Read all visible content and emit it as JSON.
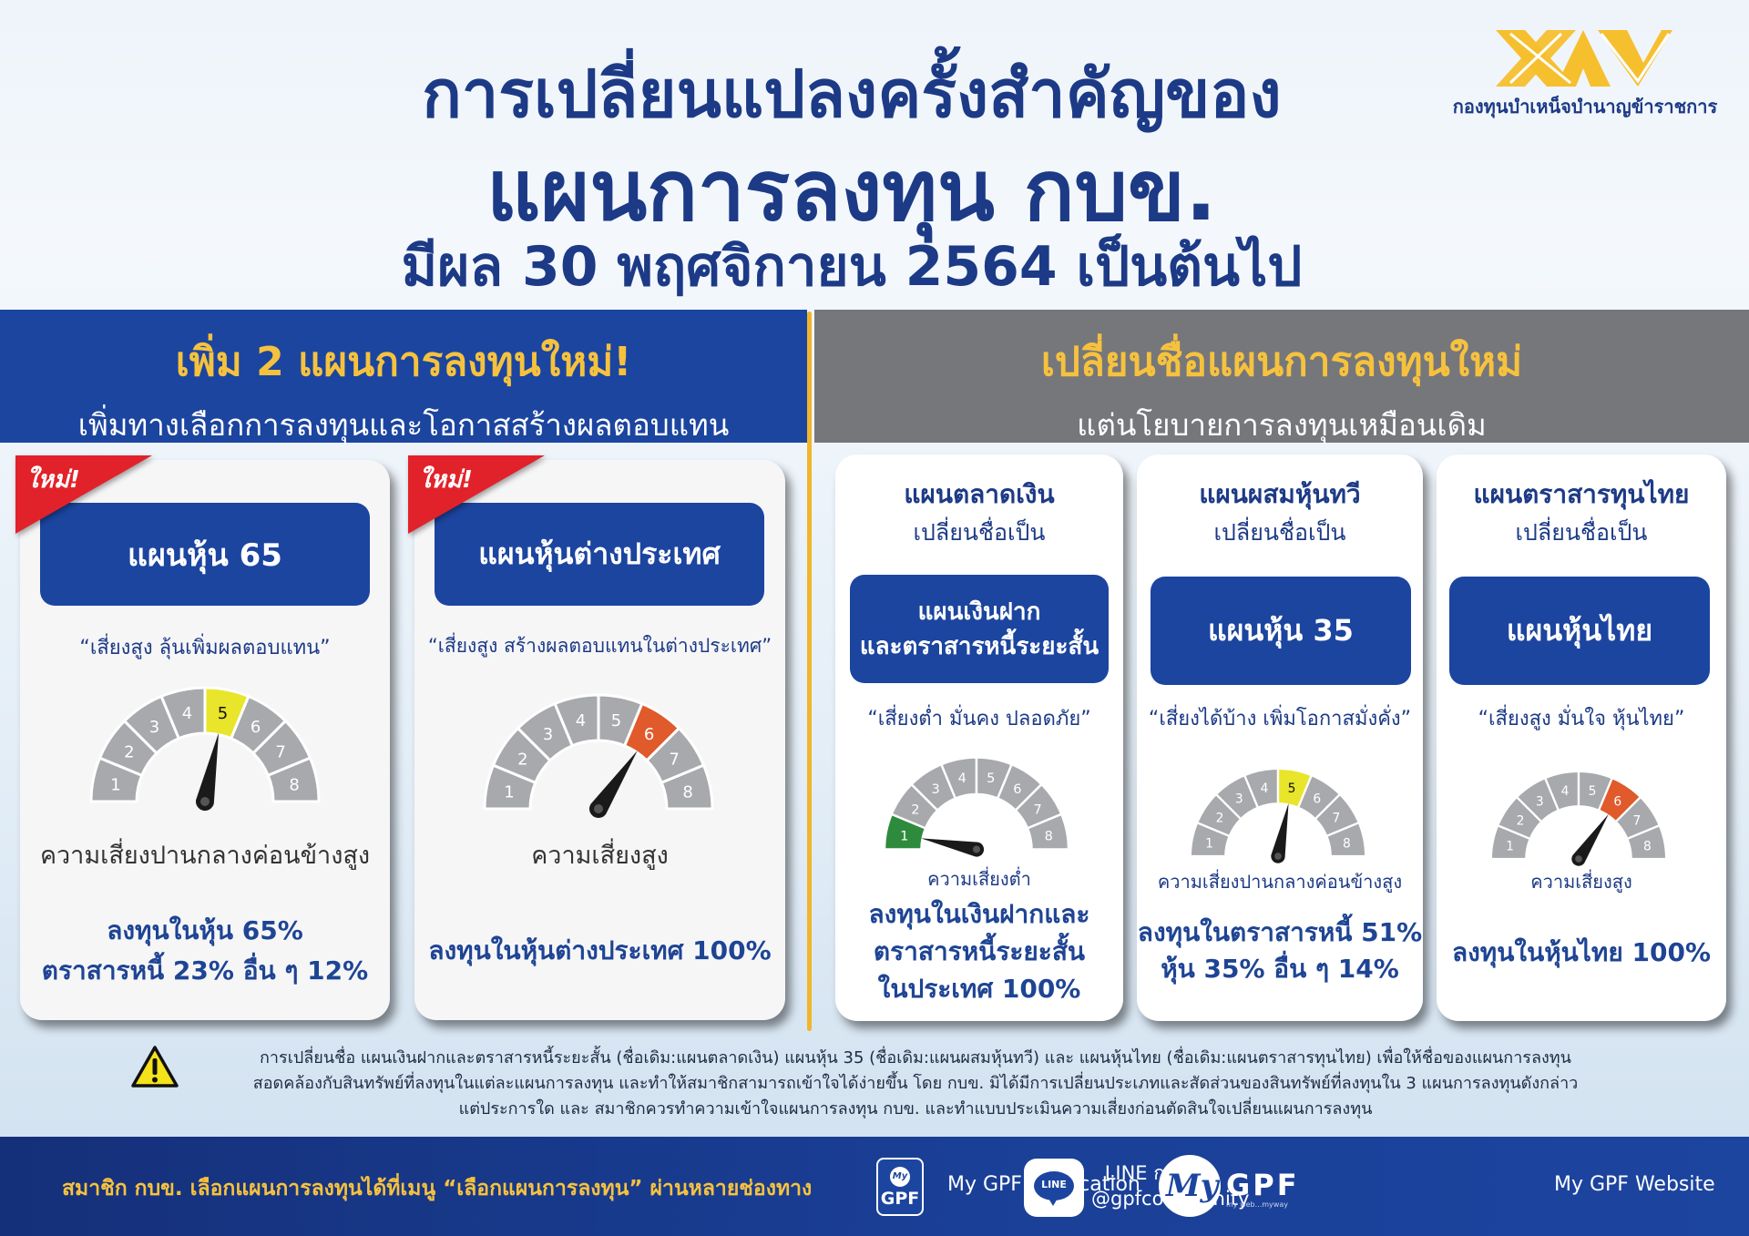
{
  "header": {
    "title_line1": "การเปลี่ยนแปลงครั้งสำคัญของ",
    "title_line2": "แผนการลงทุน กบข.",
    "title_line3": "มีผล 30 พฤศจิกายน 2564 เป็นต้นไป"
  },
  "logo": {
    "icon": "gpf-logo-icon",
    "text": "กองทุนบำเหน็จบำนาญข้าราชการ",
    "color": "#f6bf2e"
  },
  "colors": {
    "primary_blue": "#1c45a0",
    "title_navy": "#1c3a86",
    "accent_gold": "#f6c23e",
    "gray_band": "#76777b",
    "ribbon_red": "#e2222a",
    "gauge_gray": "#a7a9ac",
    "risk_low_green": "#2e8b3e",
    "risk_mid_yellow": "#e8e52a",
    "risk_high_orange": "#e05a2b"
  },
  "left_section": {
    "title": "เพิ่ม 2 แผนการลงทุนใหม่!",
    "subtitle": "เพิ่มทางเลือกการลงทุนและโอกาสสร้างผลตอบแทน",
    "cards": [
      {
        "badge": "ใหม่!",
        "plan_name": "แผนหุ้น 65",
        "slogan": "“เสี่ยงสูง ลุ้นเพิ่มผลตอบแทน”",
        "risk_level": 5,
        "risk_label": "ความเสี่ยงปานกลางค่อนข้างสูง",
        "allocation_line1": "ลงทุนในหุ้น 65%",
        "allocation_line2": "ตราสารหนี้ 23% อื่น ๆ 12%"
      },
      {
        "badge": "ใหม่!",
        "plan_name": "แผนหุ้นต่างประเทศ",
        "slogan": "“เสี่ยงสูง สร้างผลตอบแทนในต่างประเทศ”",
        "risk_level": 6,
        "risk_label": "ความเสี่ยงสูง",
        "allocation_line1": "ลงทุนในหุ้นต่างประเทศ 100%"
      }
    ]
  },
  "right_section": {
    "title": "เปลี่ยนชื่อแผนการลงทุนใหม่",
    "subtitle": "แต่นโยบายการลงทุนเหมือนเดิม",
    "cards": [
      {
        "old_name": "แผนตลาดเงิน",
        "rename_label": "เปลี่ยนชื่อเป็น",
        "new_name_line1": "แผนเงินฝาก",
        "new_name_line2": "และตราสารหนี้ระยะสั้น",
        "slogan": "“เสี่ยงต่ำ มั่นคง ปลอดภัย”",
        "risk_level": 1,
        "risk_label": "ความเสี่ยงต่ำ",
        "allocation_line1": "ลงทุนในเงินฝากและ",
        "allocation_line2": "ตราสารหนี้ระยะสั้น",
        "allocation_line3": "ในประเทศ 100%"
      },
      {
        "old_name": "แผนผสมหุ้นทวี",
        "rename_label": "เปลี่ยนชื่อเป็น",
        "new_name_line1": "แผนหุ้น 35",
        "slogan": "“เสี่ยงได้บ้าง เพิ่มโอกาสมั่งคั่ง”",
        "risk_level": 5,
        "risk_label": "ความเสี่ยงปานกลางค่อนข้างสูง",
        "allocation_line1": "ลงทุนในตราสารหนี้ 51%",
        "allocation_line2": "หุ้น 35% อื่น ๆ 14%"
      },
      {
        "old_name": "แผนตราสารทุนไทย",
        "rename_label": "เปลี่ยนชื่อเป็น",
        "new_name_line1": "แผนหุ้นไทย",
        "slogan": "“เสี่ยงสูง มั่นใจ หุ้นไทย”",
        "risk_level": 6,
        "risk_label": "ความเสี่ยงสูง",
        "allocation_line1": "ลงทุนในหุ้นไทย 100%"
      }
    ]
  },
  "gauge": {
    "levels": [
      "1",
      "2",
      "3",
      "4",
      "5",
      "6",
      "7",
      "8"
    ]
  },
  "disclaimer": {
    "icon": "warning-icon",
    "line1": "การเปลี่ยนชื่อ แผนเงินฝากและตราสารหนี้ระยะสั้น (ชื่อเดิม:แผนตลาดเงิน) แผนหุ้น 35 (ชื่อเดิม:แผนผสมหุ้นทวี) และ แผนหุ้นไทย (ชื่อเดิม:แผนตราสารทุนไทย) เพื่อให้ชื่อของแผนการลงทุน",
    "line2": "สอดคล้องกับสินทรัพย์ที่ลงทุนในแต่ละแผนการลงทุน และทำให้สมาชิกสามารถเข้าใจได้ง่ายขึ้น โดย กบข. มิได้มีการเปลี่ยนประเภทและสัดส่วนของสินทรัพย์ที่ลงทุนใน 3 แผนการลงทุนดังกล่าว",
    "line3": "แต่ประการใด และ สมาชิกควรทำความเข้าใจแผนการลงทุน กบข.  และทำแบบประเมินความเสี่ยงก่อนตัดสินใจเปลี่ยนแผนการลงทุน"
  },
  "footer": {
    "cta": "สมาชิก กบข. เลือกแผนการลงทุนได้ที่เมนู “เลือกแผนการลงทุน” ผ่านหลายช่องทาง",
    "channels": [
      {
        "icon": "my-gpf-app-icon",
        "icon_top": "My",
        "icon_bottom": "GPF",
        "label": "My GPF Application"
      },
      {
        "icon": "line-icon",
        "icon_text": "LINE",
        "label_line1": "LINE กบข.",
        "label_line2": "@gpfcommunity"
      },
      {
        "icon": "my-gpf-website-icon",
        "icon_script": "My",
        "brand": "GPF",
        "tagline": "my web...myway",
        "label": "My GPF Website"
      }
    ]
  }
}
